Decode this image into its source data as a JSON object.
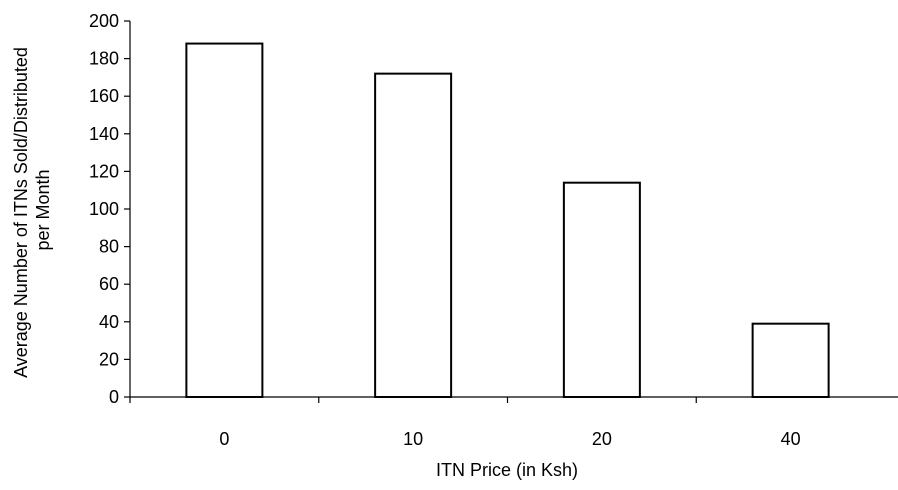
{
  "chart_data": {
    "type": "bar",
    "categories": [
      "0",
      "10",
      "20",
      "40"
    ],
    "values": [
      188,
      172,
      114,
      39
    ],
    "xlabel": "ITN Price (in Ksh)",
    "ylabel_lines": [
      "Average Number of ITNs Sold/Distributed",
      "per Month"
    ],
    "ylim": [
      0,
      200
    ],
    "yticks": [
      "0",
      "20",
      "40",
      "60",
      "80",
      "100",
      "120",
      "140",
      "160",
      "180",
      "200"
    ],
    "grid": false,
    "legend": "none",
    "colors": {
      "bar_fill": "#ffffff",
      "bar_stroke": "#000000",
      "axis": "#000000"
    }
  }
}
